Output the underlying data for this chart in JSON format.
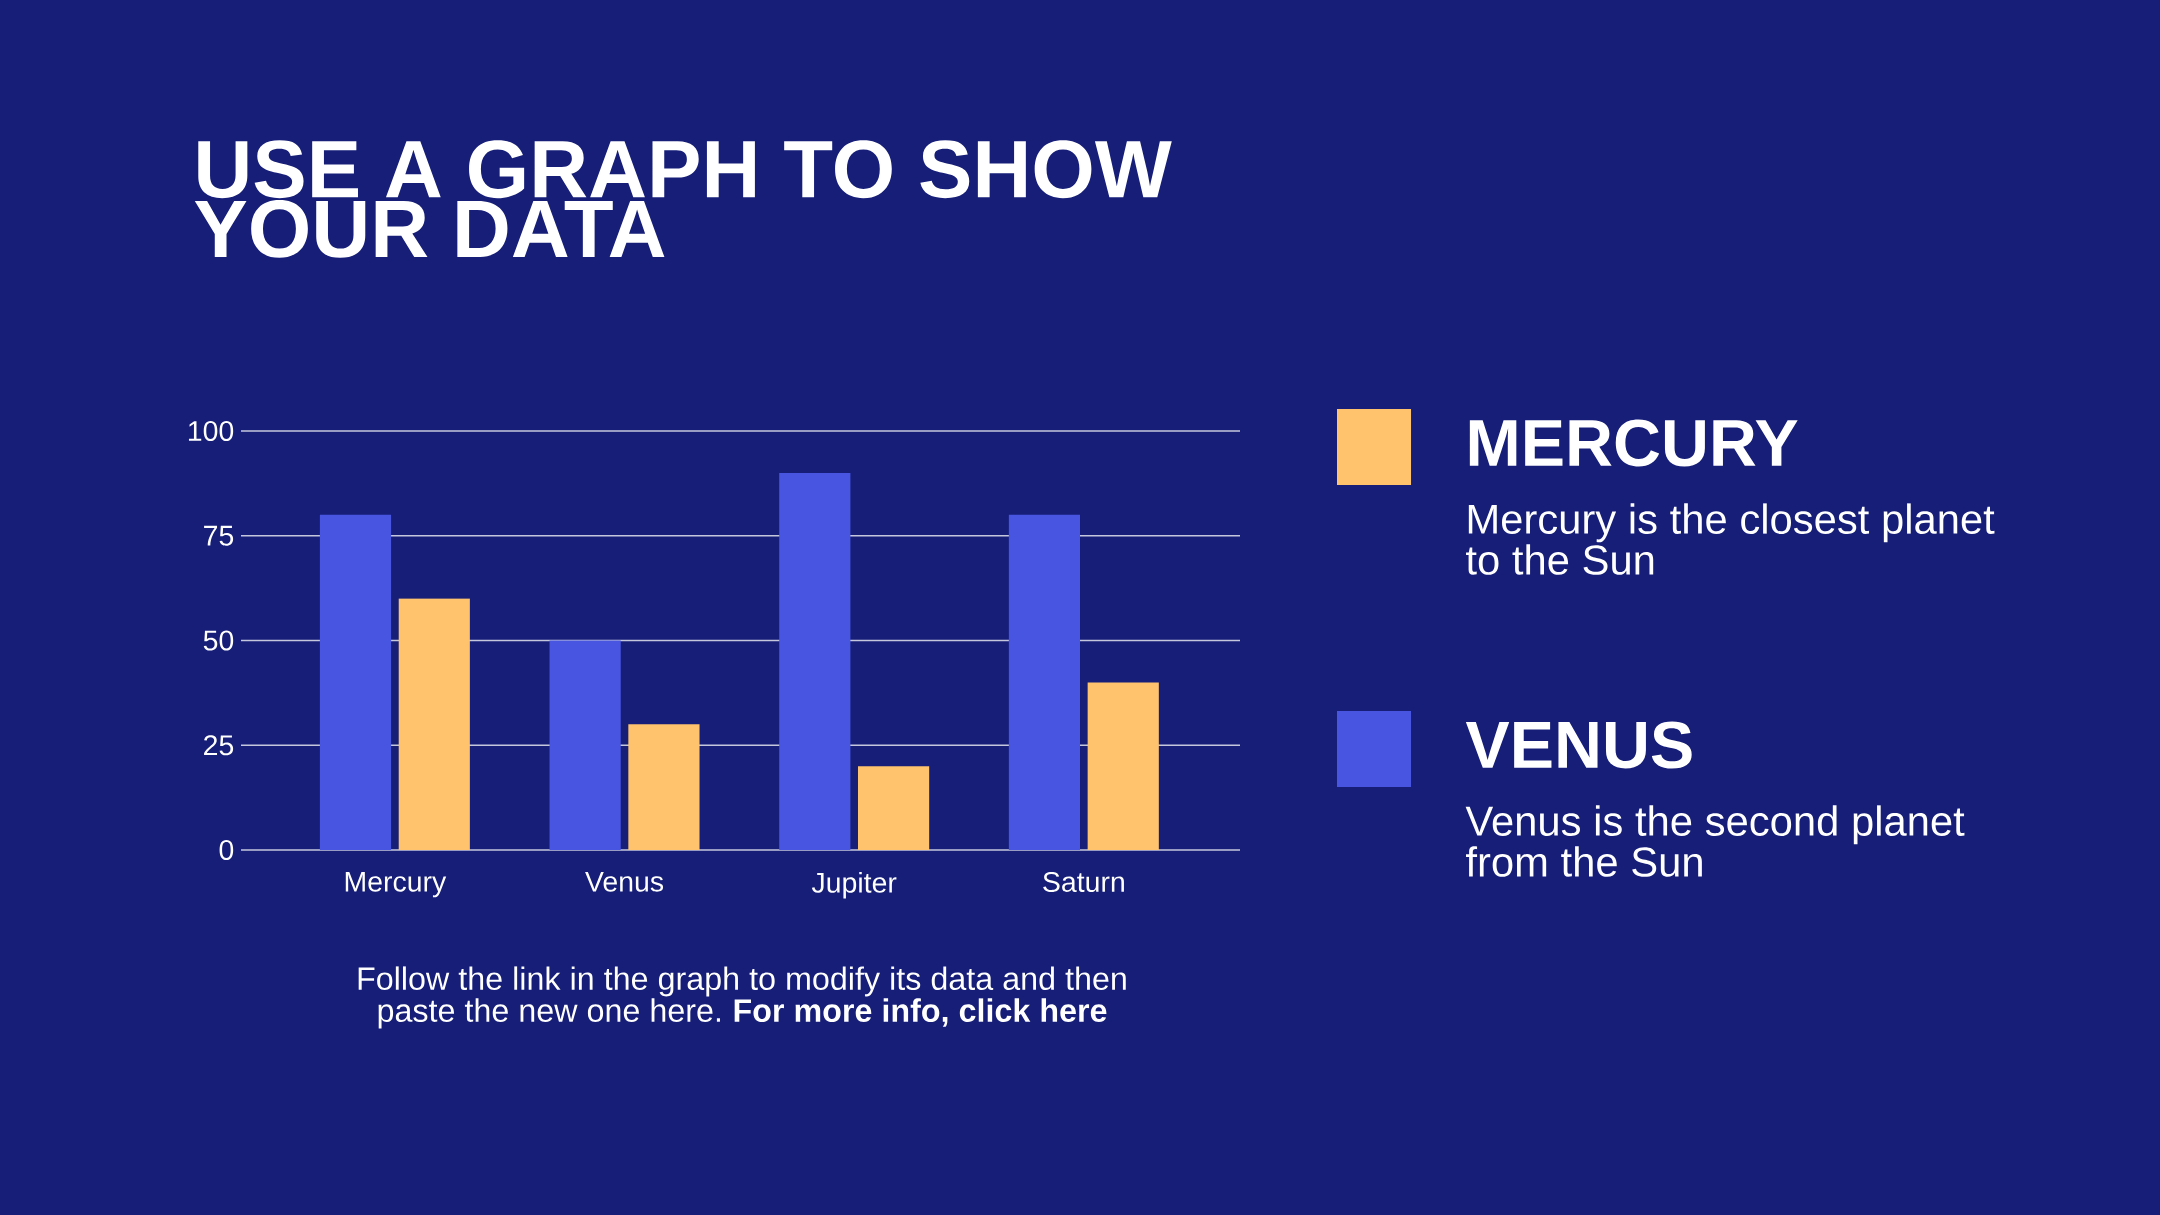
{
  "chart_data": {
    "type": "bar",
    "title": "USE A GRAPH TO SHOW YOUR DATA",
    "categories": [
      "Mercury",
      "Venus",
      "Jupiter",
      "Saturn"
    ],
    "series": [
      {
        "name": "VENUS",
        "color": "#4755e0",
        "values": [
          80,
          50,
          90,
          80
        ]
      },
      {
        "name": "MERCURY",
        "color": "#ffc36e",
        "values": [
          60,
          30,
          20,
          40
        ]
      }
    ],
    "ylim": [
      0,
      100
    ],
    "yticks": [
      0,
      25,
      50,
      75,
      100
    ],
    "grid": "y",
    "legend": "right",
    "annotations": [
      "Mercury is the closest planet to the Sun",
      "Venus is the second planet from the Sun",
      "Follow the link in the graph to modify its data and then paste the new one here. **For more info, click here**"
    ]
  }
}
